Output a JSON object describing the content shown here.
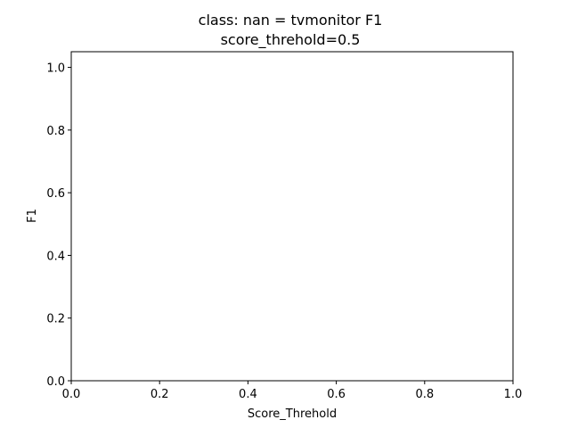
{
  "chart_data": {
    "type": "line",
    "title_lines": [
      "class: nan = tvmonitor F1",
      "score_threhold=0.5"
    ],
    "xlabel": "Score_Threhold",
    "ylabel": "F1",
    "xlim": [
      0.0,
      1.0
    ],
    "ylim": [
      0.0,
      1.05
    ],
    "xticks": [
      0.0,
      0.2,
      0.4,
      0.6,
      0.8,
      1.0
    ],
    "xtick_labels": [
      "0.0",
      "0.2",
      "0.4",
      "0.6",
      "0.8",
      "1.0"
    ],
    "yticks": [
      0.0,
      0.2,
      0.4,
      0.6,
      0.8,
      1.0
    ],
    "ytick_labels": [
      "0.0",
      "0.2",
      "0.4",
      "0.6",
      "0.8",
      "1.0"
    ],
    "grid": false,
    "series": []
  }
}
